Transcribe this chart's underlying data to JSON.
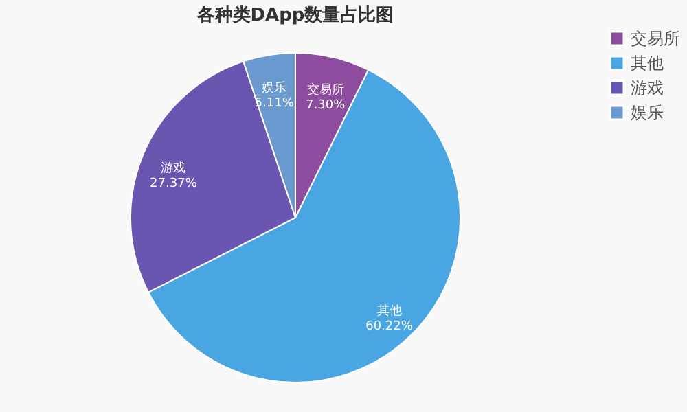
{
  "chart_data": {
    "type": "pie",
    "title": "各种类DApp数量占比图",
    "categories": [
      "交易所",
      "其他",
      "游戏",
      "娱乐"
    ],
    "values": [
      7.3,
      60.22,
      27.37,
      5.11
    ],
    "colors": [
      "#8e4c9e",
      "#4aa6e3",
      "#6a55b0",
      "#6b9ad1"
    ],
    "value_labels": [
      "7.30%",
      "60.22%",
      "27.37%",
      "5.11%"
    ],
    "legend": "right"
  }
}
